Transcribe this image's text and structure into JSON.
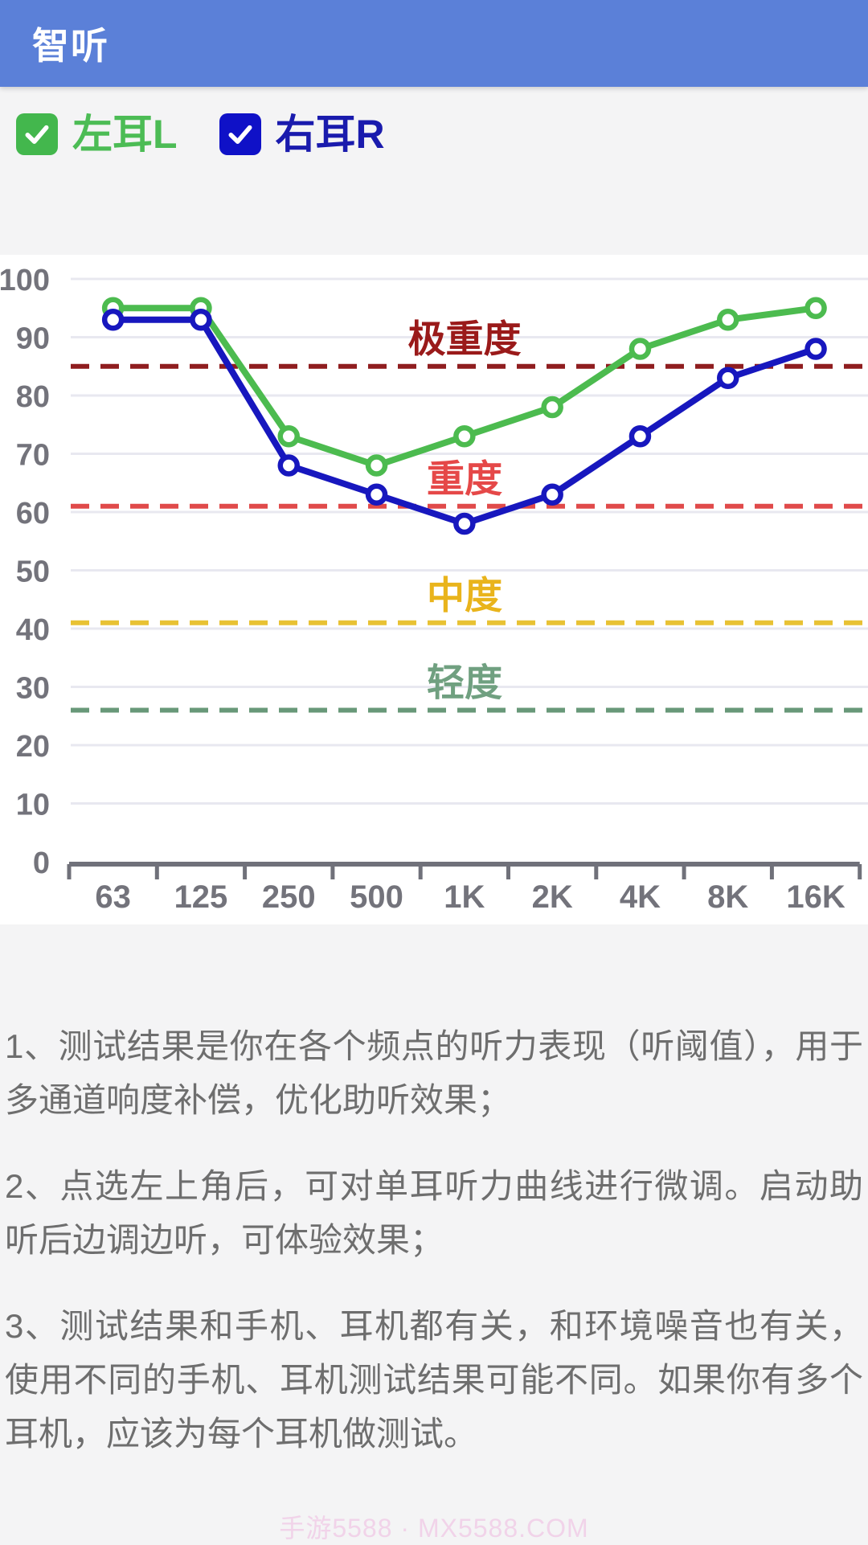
{
  "header": {
    "title": "智听"
  },
  "legend": {
    "left": {
      "label": "左耳L",
      "checked": true,
      "box_color": "#43B74D",
      "text_color": "#4CBC55"
    },
    "right": {
      "label": "右耳R",
      "checked": true,
      "box_color": "#0F11C7",
      "text_color": "#1A1BAD"
    }
  },
  "chart_data": {
    "type": "line",
    "categories": [
      "63",
      "125",
      "250",
      "500",
      "1K",
      "2K",
      "4K",
      "8K",
      "16K"
    ],
    "series": [
      {
        "name": "左耳L",
        "color": "#4CBB4F",
        "values": [
          95,
          95,
          73,
          68,
          73,
          78,
          88,
          93,
          95
        ]
      },
      {
        "name": "右耳R",
        "color": "#1717BE",
        "values": [
          93,
          93,
          68,
          63,
          58,
          63,
          73,
          83,
          88
        ]
      }
    ],
    "ylim": [
      0,
      100
    ],
    "ytick_step": 10,
    "grid": true,
    "legend_position": "top-left-external",
    "thresholds": [
      {
        "label": "极重度",
        "value": 85,
        "line_color": "#8F1D1F",
        "label_color": "#9A1A1A"
      },
      {
        "label": "重度",
        "value": 61,
        "line_color": "#E04A4A",
        "label_color": "#E54848"
      },
      {
        "label": "中度",
        "value": 41,
        "line_color": "#E8C234",
        "label_color": "#E9B41C"
      },
      {
        "label": "轻度",
        "value": 26,
        "line_color": "#689879",
        "label_color": "#70A080"
      }
    ],
    "xlabel": "",
    "ylabel": "",
    "title": ""
  },
  "notes": [
    "1、测试结果是你在各个频点的听力表现（听阈值），用于多通道响度补偿，优化助听效果；",
    "2、点选左上角后，可对单耳听力曲线进行微调。启动助听后边调边听，可体验效果；",
    "3、测试结果和手机、耳机都有关，和环境噪音也有关，使用不同的手机、耳机测试结果可能不同。如果你有多个耳机，应该为每个耳机做测试。"
  ],
  "watermark": "手游5588 · MX5588.COM"
}
